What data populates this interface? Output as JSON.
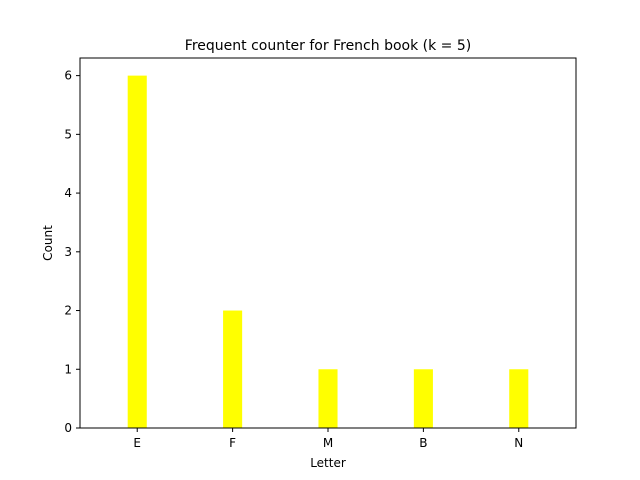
{
  "chart_data": {
    "type": "bar",
    "title": "Frequent counter for French book (k = 5)",
    "xlabel": "Letter",
    "ylabel": "Count",
    "categories": [
      "E",
      "F",
      "M",
      "B",
      "N"
    ],
    "values": [
      6,
      2,
      1,
      1,
      1
    ],
    "ylim": [
      0,
      6.3
    ],
    "yticks": [
      0,
      1,
      2,
      3,
      4,
      5,
      6
    ],
    "bar_color": "#ffff00",
    "grid": false,
    "legend": "none"
  }
}
